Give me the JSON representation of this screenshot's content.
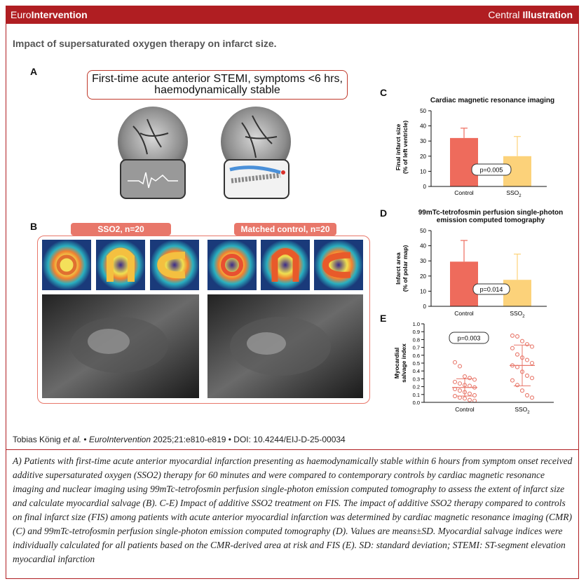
{
  "header": {
    "brand_regular": "Euro",
    "brand_bold": "Intervention",
    "right_regular": "Central ",
    "right_bold": "Illustration"
  },
  "title": "Impact of supersaturated oxygen therapy on infarct size.",
  "panel_a": {
    "label": "A",
    "box_line1": "First-time acute anterior STEMI, symptoms <6 hrs,",
    "box_line2": "haemodynamically stable"
  },
  "panel_b": {
    "label": "B",
    "group1": "SSO2, n=20",
    "group2": "Matched control, n=20"
  },
  "panel_c": {
    "label": "C",
    "title": "Cardiac magnetic resonance imaging",
    "ylabel1": "Final infarct size",
    "ylabel2": "(% of left ventricle)",
    "p": "p=0.005",
    "yticks": [
      "50",
      "40",
      "30",
      "20",
      "10",
      "0"
    ],
    "cat1": "Control",
    "cat2": "SSO",
    "cat2_sub": "2"
  },
  "panel_d": {
    "label": "D",
    "title1": "99mTc-tetrofosmin perfusion single-photon",
    "title2": "emission computed tomography",
    "ylabel1": "Infarct area",
    "ylabel2": "(% of polar map)",
    "p": "p=0.014",
    "yticks": [
      "50",
      "40",
      "30",
      "20",
      "10",
      "0"
    ],
    "cat1": "Control",
    "cat2": "SSO",
    "cat2_sub": "2"
  },
  "panel_e": {
    "label": "E",
    "ylabel1": "Myocardial",
    "ylabel2": "salvage index",
    "p": "p=0.003",
    "yticks": [
      "1.0",
      "0.9",
      "0.8",
      "0.7",
      "0.6",
      "0.5",
      "0.4",
      "0.3",
      "0.2",
      "0.1",
      "0.0"
    ],
    "cat1": "Control",
    "cat2": "SSO",
    "cat2_sub": "2"
  },
  "chart_data": [
    {
      "type": "bar",
      "title": "Cardiac magnetic resonance imaging",
      "ylabel": "Final infarct size (% of left ventricle)",
      "categories": [
        "Control",
        "SSO2"
      ],
      "values": [
        32,
        20
      ],
      "sd": [
        6.5,
        13
      ],
      "ylim": [
        0,
        50
      ],
      "annotation": "p=0.005",
      "colors": [
        "#ee6b5c",
        "#fcd27a"
      ]
    },
    {
      "type": "bar",
      "title": "99mTc-tetrofosmin perfusion single-photon emission computed tomography",
      "ylabel": "Infarct area (% of polar map)",
      "categories": [
        "Control",
        "SSO2"
      ],
      "values": [
        29.5,
        17.5
      ],
      "sd": [
        14,
        17
      ],
      "ylim": [
        0,
        50
      ],
      "annotation": "p=0.014",
      "colors": [
        "#ee6b5c",
        "#fcd27a"
      ]
    },
    {
      "type": "scatter",
      "ylabel": "Myocardial salvage index",
      "categories": [
        "Control",
        "SSO2"
      ],
      "means": [
        0.19,
        0.47
      ],
      "sd": [
        0.11,
        0.26
      ],
      "ylim": [
        0,
        1.0
      ],
      "annotation": "p=0.003",
      "series": [
        {
          "name": "Control",
          "values": [
            0.51,
            0.46,
            0.33,
            0.31,
            0.29,
            0.26,
            0.24,
            0.22,
            0.21,
            0.19,
            0.17,
            0.15,
            0.13,
            0.11,
            0.09,
            0.08,
            0.06,
            0.05,
            0.03,
            0.02
          ]
        },
        {
          "name": "SSO2",
          "values": [
            0.85,
            0.84,
            0.78,
            0.74,
            0.71,
            0.69,
            0.61,
            0.57,
            0.54,
            0.5,
            0.47,
            0.45,
            0.39,
            0.34,
            0.31,
            0.28,
            0.22,
            0.15,
            0.09,
            0.06
          ]
        }
      ]
    }
  ],
  "citation": {
    "authors": "Tobias König ",
    "etal": "et al.",
    "sep1": " • ",
    "journal": "EuroIntervention",
    "rest": " 2025;21:e810-e819 • DOI: 10.4244/EIJ-D-25-00034"
  },
  "caption": "A) Patients with first-time acute anterior myocardial infarction presenting as haemodynamically stable within 6 hours from symptom onset received additive supersaturated oxygen (SSO2) therapy for 60 minutes and were compared to contemporary controls by cardiac magnetic resonance imaging and nuclear imaging using 99mTc-tetrofosmin perfusion single-photon emission computed tomography to assess the extent of infarct size and calculate myocardial salvage (B). C-E) Impact of additive SSO2 treatment on FIS. The impact of additive SSO2 therapy compared to controls on final infarct size (FIS) among patients with acute anterior myocardial infarction was determined by cardiac magnetic resonance imaging (CMR) (C) and 99mTc-tetrofosmin perfusion single-photon emission computed tomography (D). Values are means±SD. Myocardial salvage indices were individually calculated for all patients based on the CMR-derived area at risk and FIS (E). SD: standard deviation; STEMI: ST-segment elevation myocardial infarction",
  "colors": {
    "brand_red": "#b01e22",
    "control": "#ee6b5c",
    "sso2": "#fcd27a",
    "salmon": "#e8776a"
  }
}
